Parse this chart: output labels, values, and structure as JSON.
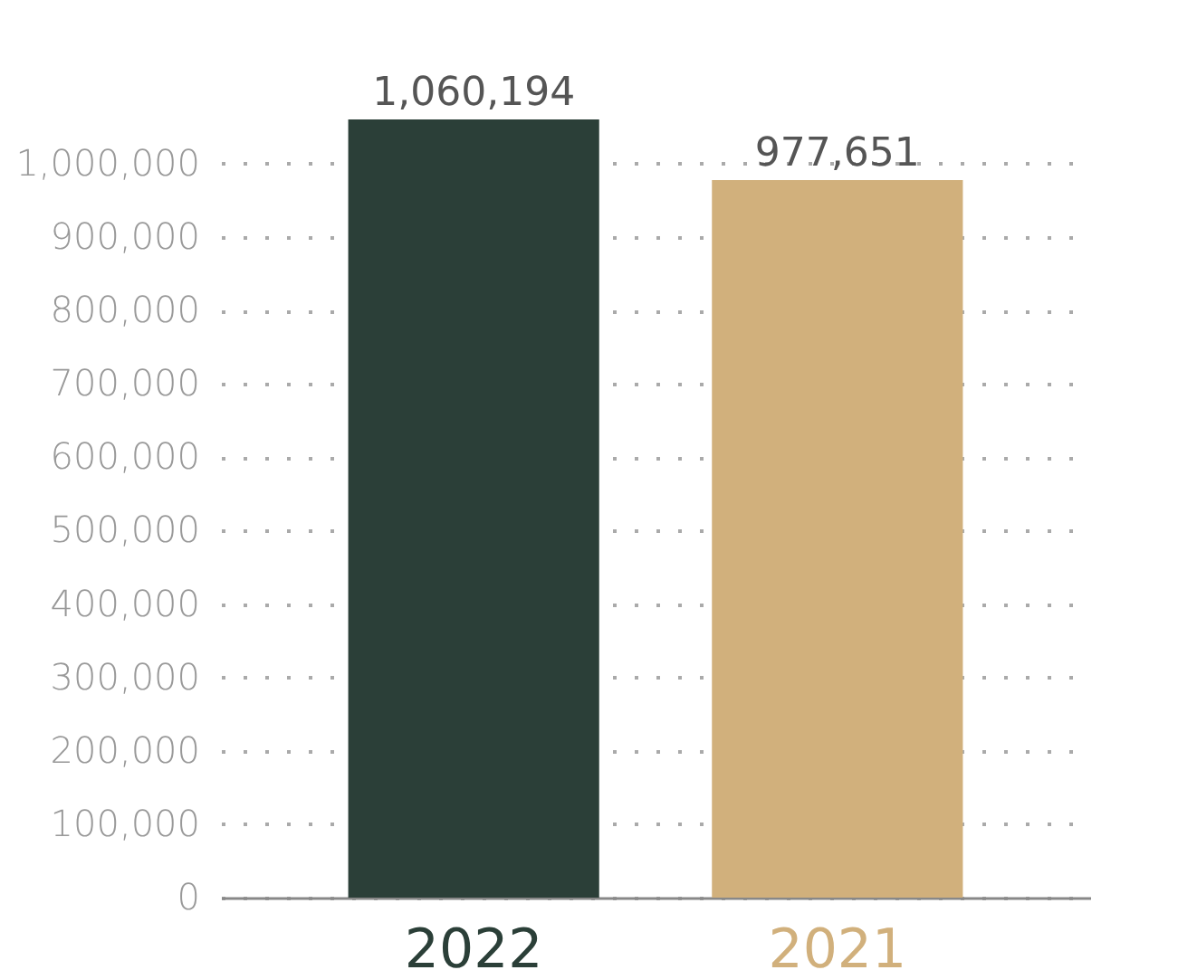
{
  "chart_data": {
    "type": "bar",
    "categories": [
      "2022",
      "2021"
    ],
    "values": [
      1060194,
      977651
    ],
    "value_labels": [
      "1,060,194",
      "977,651"
    ],
    "colors": [
      "#2b3f38",
      "#d1b07c"
    ],
    "ylim": [
      0,
      1060194
    ],
    "yticks": [
      {
        "value": 0,
        "label": "0"
      },
      {
        "value": 100000,
        "label": "100,000"
      },
      {
        "value": 200000,
        "label": "200,000"
      },
      {
        "value": 300000,
        "label": "300,000"
      },
      {
        "value": 400000,
        "label": "400,000"
      },
      {
        "value": 500000,
        "label": "500,000"
      },
      {
        "value": 600000,
        "label": "600,000"
      },
      {
        "value": 700000,
        "label": "700,000"
      },
      {
        "value": 800000,
        "label": "800,000"
      },
      {
        "value": 900000,
        "label": "900,000"
      },
      {
        "value": 1000000,
        "label": "1,000,000"
      }
    ],
    "grid": "y"
  }
}
